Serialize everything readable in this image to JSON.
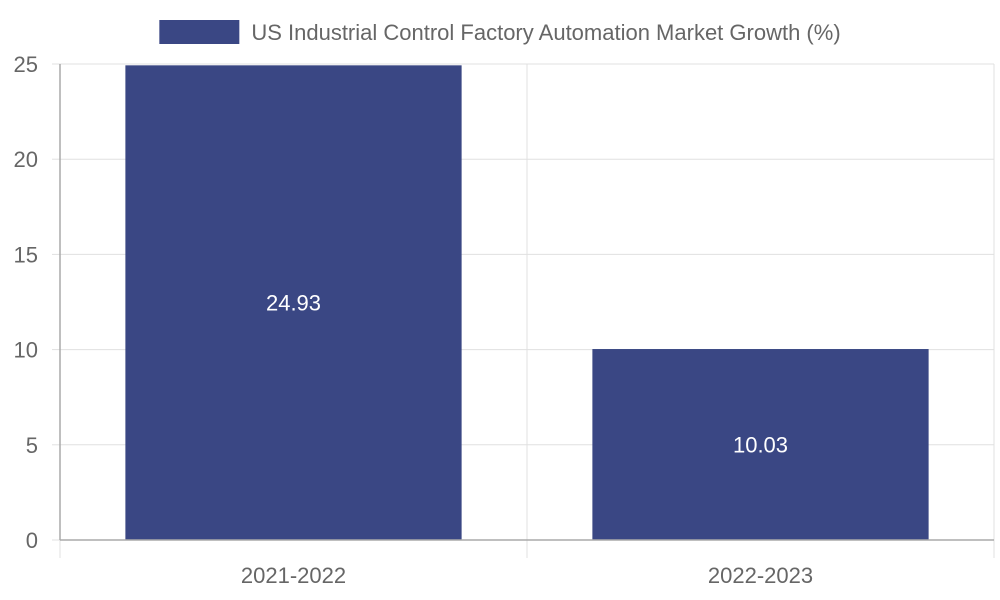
{
  "chart_data": {
    "type": "bar",
    "categories": [
      "2021-2022",
      "2022-2023"
    ],
    "series": [
      {
        "name": "US Industrial Control Factory Automation Market Growth (%)",
        "values": [
          24.93,
          10.03
        ]
      }
    ],
    "data_labels": [
      "24.93",
      "10.03"
    ],
    "ylim": [
      0,
      25
    ],
    "yticks": [
      0,
      5,
      10,
      15,
      20,
      25
    ],
    "grid": true,
    "legend_position": "top-center",
    "colors": {
      "bar": "#3a4784",
      "grid": "#e0e0e0",
      "axis": "#aaaaaa",
      "text": "#666666",
      "label": "#ffffff"
    }
  }
}
